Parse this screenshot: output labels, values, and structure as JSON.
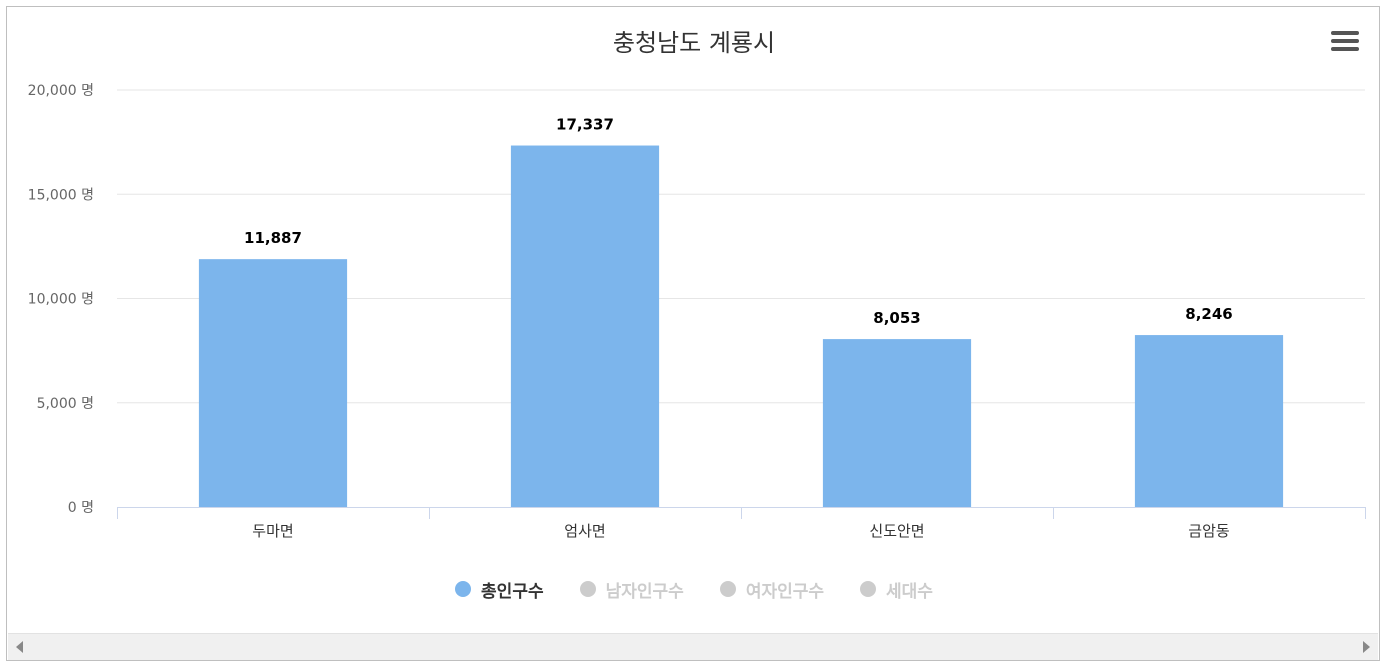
{
  "chart_data": {
    "type": "bar",
    "title": "충청남도 계룡시",
    "categories": [
      "두마면",
      "엄사면",
      "신도안면",
      "금암동"
    ],
    "series": [
      {
        "name": "총인구수",
        "values": [
          11887,
          17337,
          8053,
          8246
        ],
        "color": "#7cb5ec",
        "visible": true
      }
    ],
    "data_labels": [
      "11,887",
      "17,337",
      "8,053",
      "8,246"
    ],
    "ylim": [
      0,
      20000
    ],
    "yticks": [
      0,
      5000,
      10000,
      15000,
      20000
    ],
    "ytick_labels": [
      "0 명",
      "5,000 명",
      "10,000 명",
      "15,000 명",
      "20,000 명"
    ],
    "grid": true,
    "legend_position": "bottom"
  },
  "legend": [
    {
      "label": "총인구수",
      "active": true,
      "color": "#7cb5ec"
    },
    {
      "label": "남자인구수",
      "active": false,
      "color": "#cccccc"
    },
    {
      "label": "여자인구수",
      "active": false,
      "color": "#cccccc"
    },
    {
      "label": "세대수",
      "active": false,
      "color": "#cccccc"
    }
  ],
  "menu_icon": "hamburger-menu-icon",
  "colors": {
    "bar": "#7cb5ec",
    "grid": "#e6e6e6",
    "axis": "#ccd6eb",
    "inactive": "#cccccc"
  }
}
